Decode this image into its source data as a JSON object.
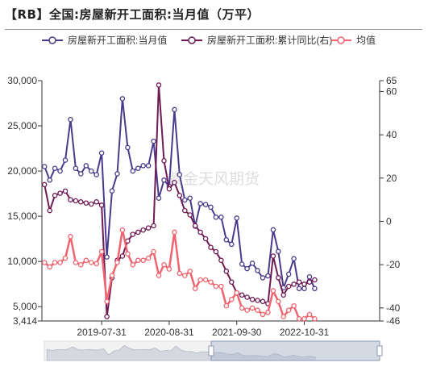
{
  "title": "【RB】全国:房屋新开工面积:当月值（万平）",
  "watermark": "紫金天风期货",
  "colors": {
    "monthly": "#4b3a8c",
    "cumulative": "#6e1a55",
    "average": "#f06470",
    "axis": "#666666"
  },
  "chart_data": {
    "type": "line",
    "title": "【RB】全国:房屋新开工面积:当月值（万平）",
    "legend_position": "top",
    "grid": false,
    "x_range": [
      "2018-08",
      "2023-12"
    ],
    "xticks": [
      "2019-07-31",
      "2020-08-31",
      "2021-09-30",
      "2022-10-31"
    ],
    "y_left": {
      "min": 3414,
      "max": 30000,
      "ticks": [
        "30,000",
        "25,000",
        "20,000",
        "15,000",
        "10,000",
        "5,000",
        "3,414"
      ]
    },
    "y_right": {
      "min": -46,
      "max": 65,
      "ticks": [
        "65",
        "60",
        "40",
        "20",
        "0",
        "-20",
        "-40",
        "-46"
      ]
    },
    "series": [
      {
        "name": "房屋新开工面积:当月值",
        "axis": "left",
        "values": [
          [
            "2018-08",
            20500
          ],
          [
            "2018-09",
            19000
          ],
          [
            "2018-10",
            20300
          ],
          [
            "2018-11",
            20000
          ],
          [
            "2018-12",
            21200
          ],
          [
            "2019-01",
            25700
          ],
          [
            "2019-02",
            20300
          ],
          [
            "2019-03",
            19700
          ],
          [
            "2019-04",
            20600
          ],
          [
            "2019-05",
            20000
          ],
          [
            "2019-06",
            19600
          ],
          [
            "2019-07",
            22000
          ],
          [
            "2019-08",
            10500
          ],
          [
            "2019-09",
            17800
          ],
          [
            "2019-10",
            19700
          ],
          [
            "2019-11",
            28000
          ],
          [
            "2019-12",
            22600
          ],
          [
            "2020-01",
            20000
          ],
          [
            "2020-02",
            20300
          ],
          [
            "2020-03",
            20600
          ],
          [
            "2020-04",
            20600
          ],
          [
            "2020-05",
            23300
          ],
          [
            "2020-06",
            17000
          ],
          [
            "2020-07",
            19000
          ],
          [
            "2020-08",
            18300
          ],
          [
            "2020-09",
            26800
          ],
          [
            "2020-10",
            19600
          ],
          [
            "2020-11",
            16800
          ],
          [
            "2020-12",
            17000
          ],
          [
            "2021-01",
            13900
          ],
          [
            "2021-02",
            16400
          ],
          [
            "2021-03",
            16300
          ],
          [
            "2021-04",
            16000
          ],
          [
            "2021-05",
            14900
          ],
          [
            "2021-06",
            14900
          ],
          [
            "2021-07",
            12400
          ],
          [
            "2021-08",
            11900
          ],
          [
            "2021-09",
            14800
          ],
          [
            "2021-10",
            9700
          ],
          [
            "2021-11",
            9200
          ],
          [
            "2021-12",
            9800
          ],
          [
            "2022-01",
            9000
          ],
          [
            "2022-02",
            8200
          ],
          [
            "2022-03",
            8400
          ],
          [
            "2022-04",
            13500
          ],
          [
            "2022-05",
            11100
          ],
          [
            "2022-06",
            7100
          ],
          [
            "2022-07",
            8600
          ],
          [
            "2022-08",
            10300
          ],
          [
            "2022-09",
            7000
          ],
          [
            "2022-10",
            7000
          ],
          [
            "2022-11",
            8300
          ],
          [
            "2022-12",
            7000
          ]
        ]
      },
      {
        "name": "房屋新开工面积:累计同比(右)",
        "axis": "right",
        "values": [
          [
            "2018-08",
            17
          ],
          [
            "2018-09",
            5
          ],
          [
            "2018-10",
            12
          ],
          [
            "2018-11",
            13
          ],
          [
            "2018-12",
            14
          ],
          [
            "2019-01",
            10
          ],
          [
            "2019-02",
            9.5
          ],
          [
            "2019-03",
            9
          ],
          [
            "2019-04",
            8.5
          ],
          [
            "2019-05",
            8
          ],
          [
            "2019-06",
            9
          ],
          [
            "2019-07",
            7.5
          ],
          [
            "2019-08",
            -44
          ],
          [
            "2019-09",
            -26
          ],
          [
            "2019-10",
            -18
          ],
          [
            "2019-11",
            -16
          ],
          [
            "2019-12",
            -9
          ],
          [
            "2020-01",
            -6
          ],
          [
            "2020-02",
            -5
          ],
          [
            "2020-03",
            -4
          ],
          [
            "2020-04",
            -3
          ],
          [
            "2020-05",
            -2
          ],
          [
            "2020-06",
            63
          ],
          [
            "2020-07",
            28
          ],
          [
            "2020-08",
            15
          ],
          [
            "2020-09",
            18
          ],
          [
            "2020-10",
            12
          ],
          [
            "2020-11",
            5
          ],
          [
            "2020-12",
            3
          ],
          [
            "2021-01",
            -2
          ],
          [
            "2021-02",
            -5
          ],
          [
            "2021-03",
            -8
          ],
          [
            "2021-04",
            -12
          ],
          [
            "2021-05",
            -14
          ],
          [
            "2021-06",
            -18
          ],
          [
            "2021-07",
            -23
          ],
          [
            "2021-08",
            -28
          ],
          [
            "2021-09",
            -33
          ],
          [
            "2021-10",
            -34
          ],
          [
            "2021-11",
            -35
          ],
          [
            "2021-12",
            -36
          ],
          [
            "2022-01",
            -36.5
          ],
          [
            "2022-02",
            -37
          ],
          [
            "2022-03",
            -38
          ],
          [
            "2022-04",
            -16
          ],
          [
            "2022-05",
            -26
          ],
          [
            "2022-06",
            -34
          ],
          [
            "2022-07",
            -30
          ],
          [
            "2022-08",
            -29
          ],
          [
            "2022-09",
            -28
          ],
          [
            "2022-10",
            -29
          ],
          [
            "2022-11",
            -28
          ],
          [
            "2022-12",
            -27
          ]
        ]
      },
      {
        "name": "均值",
        "axis": "right",
        "values": [
          [
            "2018-08",
            -19
          ],
          [
            "2018-09",
            -21
          ],
          [
            "2018-10",
            -19
          ],
          [
            "2018-11",
            -19
          ],
          [
            "2018-12",
            -17
          ],
          [
            "2019-01",
            -7
          ],
          [
            "2019-02",
            -19
          ],
          [
            "2019-03",
            -20
          ],
          [
            "2019-04",
            -18
          ],
          [
            "2019-05",
            -19
          ],
          [
            "2019-06",
            -19.5
          ],
          [
            "2019-07",
            -14
          ],
          [
            "2019-08",
            -37
          ],
          [
            "2019-09",
            -25
          ],
          [
            "2019-10",
            -19
          ],
          [
            "2019-11",
            -4
          ],
          [
            "2019-12",
            -15
          ],
          [
            "2020-01",
            -20
          ],
          [
            "2020-02",
            -18
          ],
          [
            "2020-03",
            -18
          ],
          [
            "2020-04",
            -17
          ],
          [
            "2020-05",
            -14
          ],
          [
            "2020-06",
            -25
          ],
          [
            "2020-07",
            -20
          ],
          [
            "2020-08",
            -22
          ],
          [
            "2020-09",
            -5
          ],
          [
            "2020-10",
            -24
          ],
          [
            "2020-11",
            -25
          ],
          [
            "2020-12",
            -23
          ],
          [
            "2021-01",
            -31
          ],
          [
            "2021-02",
            -27
          ],
          [
            "2021-03",
            -27
          ],
          [
            "2021-04",
            -28
          ],
          [
            "2021-05",
            -30
          ],
          [
            "2021-06",
            -30
          ],
          [
            "2021-07",
            -39
          ],
          [
            "2021-08",
            -36
          ],
          [
            "2021-09",
            -33
          ],
          [
            "2021-10",
            -40
          ],
          [
            "2021-11",
            -41
          ],
          [
            "2021-12",
            -40
          ],
          [
            "2022-01",
            -41
          ],
          [
            "2022-02",
            -43
          ],
          [
            "2022-03",
            -42
          ],
          [
            "2022-04",
            -32
          ],
          [
            "2022-05",
            -37
          ],
          [
            "2022-06",
            -44
          ],
          [
            "2022-07",
            -41
          ],
          [
            "2022-08",
            -39
          ],
          [
            "2022-09",
            -45
          ],
          [
            "2022-10",
            -45
          ],
          [
            "2022-11",
            -43
          ],
          [
            "2022-12",
            -45
          ]
        ]
      }
    ]
  }
}
